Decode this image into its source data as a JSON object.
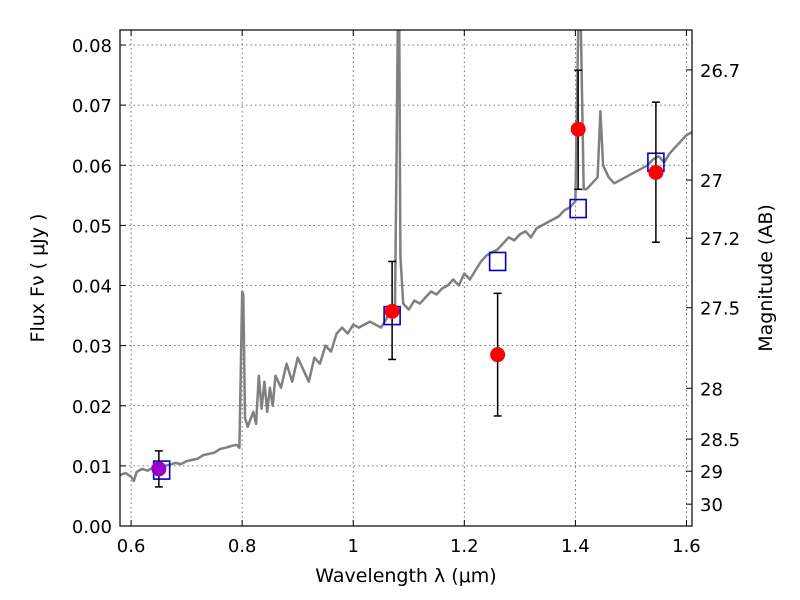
{
  "chart_data": {
    "type": "scatter",
    "xlabel": "Wavelength  λ (μm)",
    "ylabel": "Flux  Fν  ( μJy )",
    "ylabel_right": "Magnitude (AB)",
    "xlim": [
      0.58,
      1.61
    ],
    "ylim": [
      0.0,
      0.0825
    ],
    "grid": true,
    "x_ticks": [
      0.6,
      0.8,
      1.0,
      1.2,
      1.4,
      1.6
    ],
    "x_tick_labels": [
      "0.6",
      "0.8",
      "1",
      "1.2",
      "1.4",
      "1.6"
    ],
    "y_ticks": [
      0.0,
      0.01,
      0.02,
      0.03,
      0.04,
      0.05,
      0.06,
      0.07,
      0.08
    ],
    "y_tick_labels": [
      "0.00",
      "0.01",
      "0.02",
      "0.03",
      "0.04",
      "0.05",
      "0.06",
      "0.07",
      "0.08"
    ],
    "right_ticks": [
      {
        "label": "26.7",
        "value": 26.7
      },
      {
        "label": "27",
        "value": 27.0
      },
      {
        "label": "27.2",
        "value": 27.2
      },
      {
        "label": "27.5",
        "value": 27.5
      },
      {
        "label": "28",
        "value": 28.0
      },
      {
        "label": "28.5",
        "value": 28.5
      },
      {
        "label": "29",
        "value": 29.0
      },
      {
        "label": "30",
        "value": 30.0
      }
    ],
    "series": [
      {
        "kind": "line",
        "color": "#808080",
        "x": [
          0.58,
          0.59,
          0.6,
          0.605,
          0.61,
          0.62,
          0.63,
          0.64,
          0.65,
          0.66,
          0.67,
          0.68,
          0.69,
          0.7,
          0.71,
          0.72,
          0.73,
          0.74,
          0.75,
          0.76,
          0.77,
          0.78,
          0.79,
          0.795,
          0.8,
          0.802,
          0.805,
          0.81,
          0.82,
          0.825,
          0.83,
          0.835,
          0.84,
          0.845,
          0.85,
          0.855,
          0.86,
          0.87,
          0.88,
          0.89,
          0.9,
          0.91,
          0.92,
          0.93,
          0.94,
          0.95,
          0.96,
          0.97,
          0.98,
          0.99,
          1.0,
          1.01,
          1.02,
          1.03,
          1.04,
          1.05,
          1.06,
          1.065,
          1.07,
          1.075,
          1.078,
          1.08,
          1.083,
          1.085,
          1.09,
          1.1,
          1.11,
          1.12,
          1.13,
          1.14,
          1.15,
          1.16,
          1.17,
          1.18,
          1.19,
          1.2,
          1.21,
          1.22,
          1.23,
          1.24,
          1.25,
          1.26,
          1.27,
          1.28,
          1.29,
          1.3,
          1.31,
          1.32,
          1.33,
          1.34,
          1.35,
          1.36,
          1.37,
          1.38,
          1.39,
          1.4,
          1.405,
          1.41,
          1.415,
          1.42,
          1.43,
          1.44,
          1.445,
          1.45,
          1.46,
          1.47,
          1.48,
          1.49,
          1.5,
          1.51,
          1.52,
          1.53,
          1.54,
          1.55,
          1.56,
          1.57,
          1.58,
          1.59,
          1.6,
          1.61
        ],
        "y": [
          0.0085,
          0.0088,
          0.0082,
          0.0075,
          0.009,
          0.0095,
          0.0092,
          0.0098,
          0.0095,
          0.01,
          0.0102,
          0.0105,
          0.0103,
          0.0108,
          0.011,
          0.0112,
          0.0118,
          0.012,
          0.0122,
          0.0128,
          0.013,
          0.0133,
          0.0135,
          0.013,
          0.039,
          0.0385,
          0.018,
          0.0165,
          0.019,
          0.017,
          0.025,
          0.0195,
          0.024,
          0.019,
          0.023,
          0.02,
          0.025,
          0.023,
          0.027,
          0.024,
          0.028,
          0.026,
          0.024,
          0.028,
          0.027,
          0.03,
          0.029,
          0.032,
          0.033,
          0.032,
          0.0335,
          0.033,
          0.0335,
          0.034,
          0.0335,
          0.033,
          0.0345,
          0.036,
          0.036,
          0.035,
          0.062,
          0.0825,
          0.0825,
          0.045,
          0.037,
          0.036,
          0.0375,
          0.037,
          0.038,
          0.039,
          0.0385,
          0.0395,
          0.04,
          0.041,
          0.04,
          0.042,
          0.041,
          0.0425,
          0.044,
          0.045,
          0.0455,
          0.046,
          0.047,
          0.048,
          0.0475,
          0.0485,
          0.049,
          0.048,
          0.0495,
          0.05,
          0.0505,
          0.051,
          0.0515,
          0.0525,
          0.053,
          0.054,
          0.0825,
          0.0825,
          0.056,
          0.056,
          0.057,
          0.058,
          0.069,
          0.06,
          0.058,
          0.057,
          0.0575,
          0.058,
          0.0585,
          0.059,
          0.0595,
          0.06,
          0.061,
          0.0615,
          0.0605,
          0.062,
          0.063,
          0.064,
          0.065,
          0.0655
        ]
      },
      {
        "kind": "model_points",
        "marker": "square-open",
        "color": "#0000cc",
        "x": [
          0.655,
          1.07,
          1.26,
          1.405,
          1.545
        ],
        "y": [
          0.0093,
          0.035,
          0.044,
          0.0528,
          0.0605
        ]
      },
      {
        "kind": "observed_points",
        "marker": "circle-filled",
        "color": "#ff0000",
        "x": [
          1.07,
          1.26,
          1.405,
          1.545
        ],
        "y": [
          0.0357,
          0.0285,
          0.066,
          0.0588
        ],
        "yerr_low": [
          0.0277,
          0.0183,
          0.056,
          0.0472
        ],
        "yerr_high": [
          0.044,
          0.0387,
          0.0758,
          0.0705
        ]
      },
      {
        "kind": "observed_points",
        "marker": "circle-filled",
        "color": "#9900cc",
        "x": [
          0.65
        ],
        "y": [
          0.0095
        ],
        "yerr_low": [
          0.0065
        ],
        "yerr_high": [
          0.0125
        ]
      }
    ]
  }
}
